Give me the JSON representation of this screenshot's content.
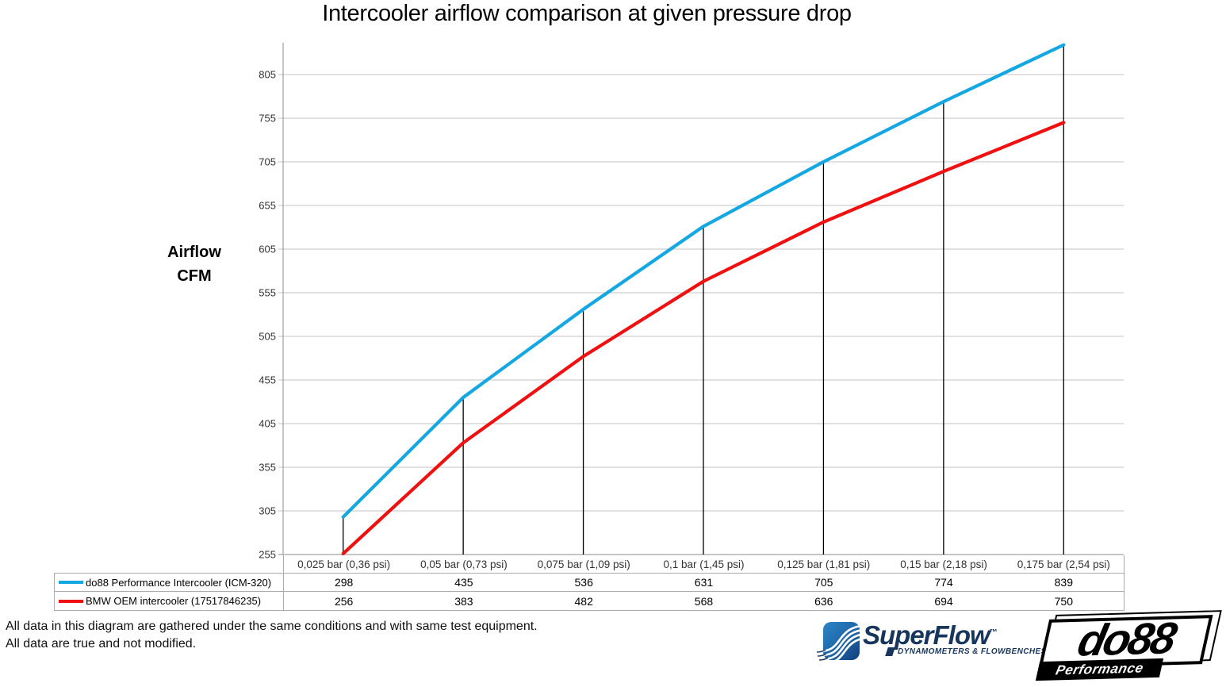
{
  "chart_data": {
    "type": "line",
    "title": "Intercooler airflow comparison at given pressure drop",
    "ylabel_lines": [
      "Airflow",
      "CFM"
    ],
    "categories": [
      "0,025 bar (0,36 psi)",
      "0,05 bar (0,73 psi)",
      "0,075 bar (1,09 psi)",
      "0,1 bar (1,45 psi)",
      "0,125 bar (1,81 psi)",
      "0,15 bar (2,18 psi)",
      "0,175 bar (2,54 psi)"
    ],
    "series": [
      {
        "name": "do88 Performance Intercooler (ICM-320)",
        "color": "#14A7E2",
        "values": [
          298,
          435,
          536,
          631,
          705,
          774,
          839
        ]
      },
      {
        "name": "BMW OEM intercooler (17517846235)",
        "color": "#EF1010",
        "values": [
          256,
          383,
          482,
          568,
          636,
          694,
          750
        ]
      }
    ],
    "y_ticks": [
      255,
      305,
      355,
      405,
      455,
      505,
      555,
      605,
      655,
      705,
      755,
      805
    ],
    "ylim": [
      255,
      845
    ],
    "grid": true,
    "drop_lines": true,
    "legend_position": "table-left"
  },
  "footer": {
    "line1": "All data in this diagram are gathered under the same conditions and with same test equipment.",
    "line2": "All data are true and not modified."
  },
  "logos": {
    "superflow": {
      "name": "SuperFlow",
      "trademark": "™",
      "tagline": "DYNAMOMETERS & FLOWBENCHES"
    },
    "do88": {
      "name": "do88",
      "tagline": "Performance"
    }
  },
  "colors": {
    "blue": "#14A7E2",
    "red": "#EF1010",
    "grid": "#C3C3C3",
    "axis": "#8E8E8E",
    "drop_line": "#000000",
    "table_border": "#ABABAB",
    "navy": "#17365D"
  }
}
